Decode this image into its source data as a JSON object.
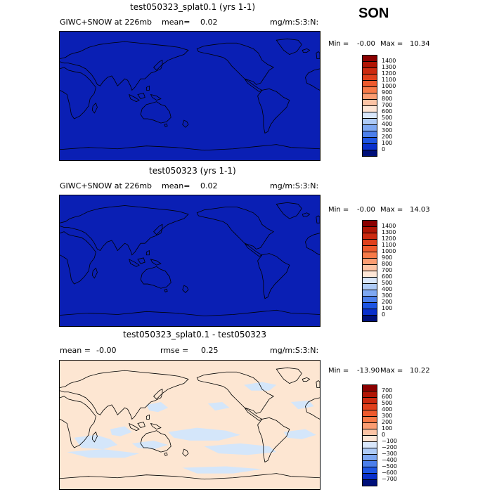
{
  "season": "SON",
  "panels": [
    {
      "title": "test050323_splat0.1 (yrs 1-1)",
      "left_text": "GIWC+SNOW at 226mb",
      "mean_label": "mean=",
      "mean_value": "0.02",
      "units": "mg/m:S:3:N:",
      "min_label": "Min =",
      "min_value": "-0.00",
      "max_label": "Max =",
      "max_value": "10.34",
      "fill_color": "#0a1fb4",
      "colorbar": {
        "labels": [
          "1400",
          "1300",
          "1200",
          "1100",
          "1000",
          "900",
          "800",
          "700",
          "600",
          "500",
          "400",
          "300",
          "200",
          "100",
          "0"
        ],
        "colors": [
          "#8b0000",
          "#b01505",
          "#cc2a10",
          "#e0401c",
          "#ee5a2d",
          "#f77a48",
          "#fb9d72",
          "#fdc4a5",
          "#fee6d6",
          "#d9e7fb",
          "#aecbf7",
          "#7ea8f2",
          "#4c7feb",
          "#1e55e3",
          "#0a30cc",
          "#00107a"
        ]
      }
    },
    {
      "title": "test050323 (yrs 1-1)",
      "left_text": "GIWC+SNOW at 226mb",
      "mean_label": "mean=",
      "mean_value": "0.02",
      "units": "mg/m:S:3:N:",
      "min_label": "Min =",
      "min_value": "-0.00",
      "max_label": "Max =",
      "max_value": "14.03",
      "fill_color": "#0a1fb4",
      "colorbar": {
        "labels": [
          "1400",
          "1300",
          "1200",
          "1100",
          "1000",
          "900",
          "800",
          "700",
          "600",
          "500",
          "400",
          "300",
          "200",
          "100",
          "0"
        ],
        "colors": [
          "#8b0000",
          "#b01505",
          "#cc2a10",
          "#e0401c",
          "#ee5a2d",
          "#f77a48",
          "#fb9d72",
          "#fdc4a5",
          "#fee6d6",
          "#d9e7fb",
          "#aecbf7",
          "#7ea8f2",
          "#4c7feb",
          "#1e55e3",
          "#0a30cc",
          "#00107a"
        ]
      }
    },
    {
      "title": "test050323_splat0.1 - test050323",
      "left_text": "mean =",
      "mean_value": "-0.00",
      "rmse_label": "rmse =",
      "rmse_value": "0.25",
      "units": "mg/m:S:3:N:",
      "min_label": "Min =",
      "min_value": "-13.90",
      "max_label": "Max =",
      "max_value": "10.22",
      "fill_color": "#fde6d2",
      "anomaly_color": "#d4e6fa",
      "colorbar": {
        "labels": [
          "700",
          "600",
          "500",
          "400",
          "300",
          "200",
          "100",
          "0",
          "−100",
          "−200",
          "−300",
          "−400",
          "−500",
          "−600",
          "−700"
        ],
        "colors": [
          "#8b0000",
          "#b01505",
          "#cc2a10",
          "#e0401c",
          "#ee5a2d",
          "#f77a48",
          "#fb9d72",
          "#fdc4a5",
          "#fee6d6",
          "#d9e7fb",
          "#aecbf7",
          "#7ea8f2",
          "#4c7feb",
          "#1e55e3",
          "#0a30cc",
          "#00107a"
        ]
      }
    }
  ]
}
